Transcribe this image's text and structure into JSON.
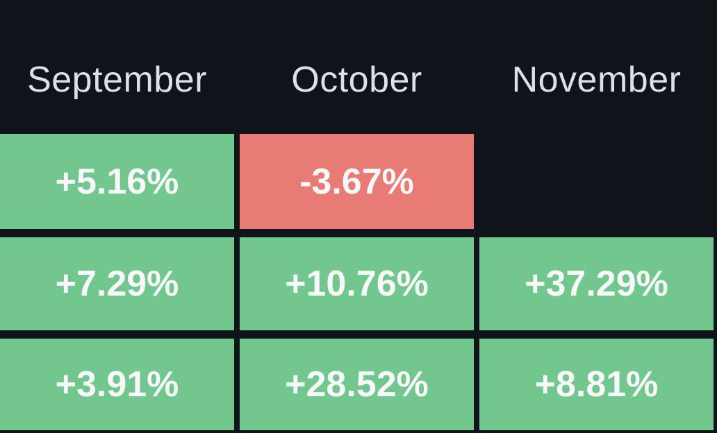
{
  "table": {
    "columns": [
      "September",
      "October",
      "November"
    ],
    "rows": [
      {
        "cells": [
          {
            "label": "+5.16%",
            "state": "positive"
          },
          {
            "label": "-3.67%",
            "state": "negative"
          },
          {
            "label": "",
            "state": "empty"
          }
        ]
      },
      {
        "cells": [
          {
            "label": "+7.29%",
            "state": "positive"
          },
          {
            "label": "+10.76%",
            "state": "positive"
          },
          {
            "label": "+37.29%",
            "state": "positive"
          }
        ]
      },
      {
        "cells": [
          {
            "label": "+3.91%",
            "state": "positive"
          },
          {
            "label": "+28.52%",
            "state": "positive"
          },
          {
            "label": "+8.81%",
            "state": "positive"
          }
        ]
      }
    ]
  },
  "colors": {
    "background": "#10131a",
    "positive_cell": "#72c78e",
    "negative_cell": "#e87c74",
    "header_text": "#dde1e6",
    "value_text": "#f7f8f9"
  },
  "chart_data": {
    "type": "heatmap",
    "title": "",
    "columns": [
      "September",
      "October",
      "November"
    ],
    "values": [
      [
        5.16,
        -3.67,
        null
      ],
      [
        7.29,
        10.76,
        37.29
      ],
      [
        3.91,
        28.52,
        8.81
      ]
    ],
    "value_unit": "percent",
    "positive_color": "#72c78e",
    "negative_color": "#e87c74",
    "background_color": "#10131a"
  }
}
